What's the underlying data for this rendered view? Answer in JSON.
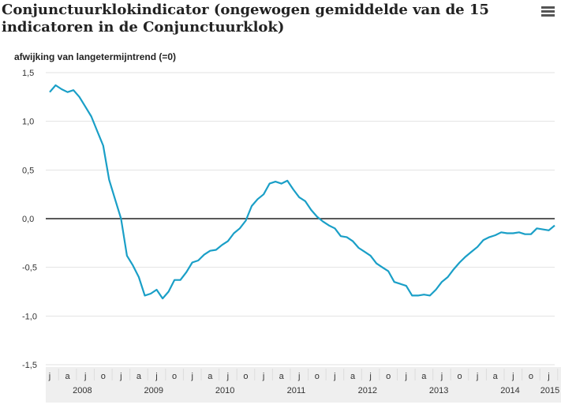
{
  "chart_data": {
    "type": "line",
    "title": [
      "Conjunctuurklokindicator (ongewogen gemiddelde van de 15",
      "indicatoren in de Conjunctuurklok)"
    ],
    "y_label": "afwijking van langetermijntrend (=0)",
    "categories": [
      "j",
      null,
      null,
      "a",
      null,
      null,
      "j",
      null,
      null,
      "o",
      null,
      null,
      "j",
      null,
      null,
      "a",
      null,
      null,
      "j",
      null,
      null,
      "o",
      null,
      null,
      "j",
      null,
      null,
      "a",
      null,
      null,
      "j",
      null,
      null,
      "o",
      null,
      null,
      "j",
      null,
      null,
      "a",
      null,
      null,
      "j",
      null,
      null,
      "o",
      null,
      null,
      "j",
      null,
      null,
      "a",
      null,
      null,
      "j",
      null,
      null,
      "o",
      null,
      null,
      "j",
      null,
      null,
      "a",
      null,
      null,
      "j",
      null,
      null,
      "o",
      null,
      null,
      "j",
      null,
      null,
      "a",
      null,
      null,
      "j",
      null,
      null,
      "o",
      null,
      null,
      "j",
      null
    ],
    "years": [
      "2008",
      "2009",
      "2010",
      "2011",
      "2012",
      "2013",
      "2014",
      "2015"
    ],
    "series": [
      {
        "name": "Conjunctuurklokindicator",
        "color": "#1a9fc7",
        "values": [
          1.3,
          1.37,
          1.33,
          1.3,
          1.32,
          1.25,
          1.15,
          1.05,
          0.9,
          0.75,
          0.4,
          0.2,
          0.0,
          -0.38,
          -0.48,
          -0.6,
          -0.79,
          -0.77,
          -0.73,
          -0.82,
          -0.75,
          -0.63,
          -0.63,
          -0.55,
          -0.45,
          -0.43,
          -0.37,
          -0.33,
          -0.32,
          -0.27,
          -0.23,
          -0.15,
          -0.1,
          -0.02,
          0.13,
          0.2,
          0.25,
          0.36,
          0.38,
          0.36,
          0.39,
          0.3,
          0.22,
          0.18,
          0.09,
          0.02,
          -0.03,
          -0.07,
          -0.1,
          -0.18,
          -0.19,
          -0.23,
          -0.3,
          -0.34,
          -0.38,
          -0.46,
          -0.5,
          -0.54,
          -0.65,
          -0.67,
          -0.69,
          -0.79,
          -0.79,
          -0.78,
          -0.79,
          -0.73,
          -0.65,
          -0.6,
          -0.52,
          -0.45,
          -0.39,
          -0.34,
          -0.29,
          -0.22,
          -0.19,
          -0.17,
          -0.14,
          -0.15,
          -0.15,
          -0.14,
          -0.16,
          -0.16,
          -0.1,
          -0.11,
          -0.12,
          -0.07
        ]
      }
    ],
    "ylim": [
      -1.5,
      1.5
    ],
    "yticks": [
      {
        "value": -1.5,
        "label": "-1,5"
      },
      {
        "value": -1.0,
        "label": "-1,0"
      },
      {
        "value": -0.5,
        "label": "-0,5"
      },
      {
        "value": 0,
        "label": "0,0"
      },
      {
        "value": 0.5,
        "label": "0,5"
      },
      {
        "value": 1.0,
        "label": "1,0"
      },
      {
        "value": 1.5,
        "label": "1,5"
      }
    ],
    "grid": true
  }
}
